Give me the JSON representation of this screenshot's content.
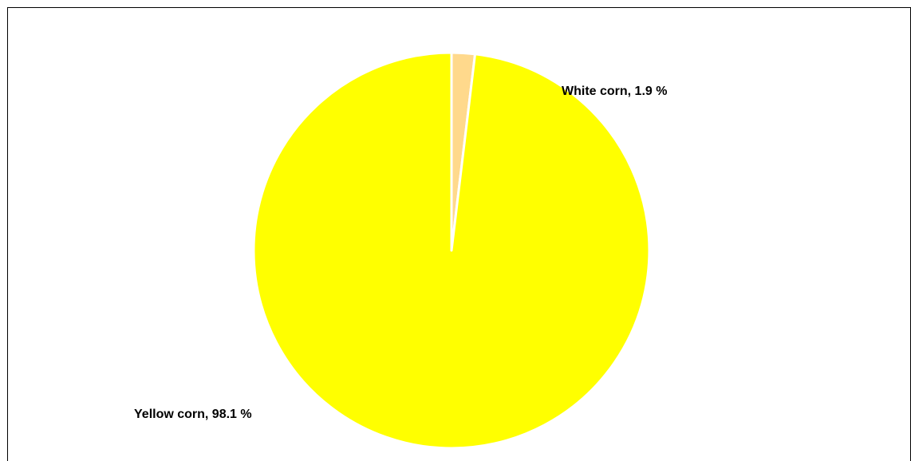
{
  "chart_data": {
    "type": "pie",
    "title": "",
    "start_angle_deg": 0,
    "direction": "clockwise",
    "categories": [
      "White corn",
      "Yellow corn"
    ],
    "values": [
      1.9,
      98.1
    ],
    "unit": "%",
    "labels": [
      "White corn,  1.9 %",
      "Yellow corn,  98.1 %"
    ],
    "colors": [
      "#FFD98C",
      "#FFFF00"
    ],
    "slice_border_color": "#FFFFFF",
    "legend": "none",
    "grid": false
  }
}
